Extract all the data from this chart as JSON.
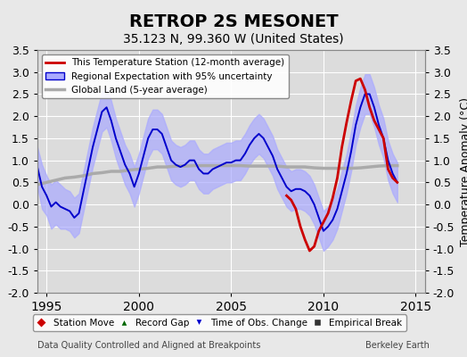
{
  "title": "RETROP 2S MESONET",
  "subtitle": "35.123 N, 99.360 W (United States)",
  "ylabel": "Temperature Anomaly (°C)",
  "footer_left": "Data Quality Controlled and Aligned at Breakpoints",
  "footer_right": "Berkeley Earth",
  "xlim": [
    1994.5,
    2015.5
  ],
  "ylim": [
    -2.0,
    3.5
  ],
  "yticks": [
    -2.0,
    -1.5,
    -1.0,
    -0.5,
    0.0,
    0.5,
    1.0,
    1.5,
    2.0,
    2.5,
    3.0,
    3.5
  ],
  "xticks": [
    1995,
    2000,
    2005,
    2010,
    2015
  ],
  "background_color": "#e8e8e8",
  "plot_bg_color": "#dcdcdc",
  "grid_color": "#ffffff",
  "blue_line_color": "#0000cc",
  "blue_fill_color": "#aaaaff",
  "red_line_color": "#cc0000",
  "gray_line_color": "#aaaaaa",
  "legend_items": [
    {
      "label": "This Temperature Station (12-month average)",
      "color": "#cc0000",
      "lw": 2.0,
      "linestyle": "-"
    },
    {
      "label": "Regional Expectation with 95% uncertainty",
      "color": "#0000cc",
      "lw": 1.5,
      "linestyle": "-"
    },
    {
      "label": "Global Land (5-year average)",
      "color": "#aaaaaa",
      "lw": 2.5,
      "linestyle": "-"
    }
  ],
  "bottom_legend": [
    {
      "label": "Station Move",
      "marker": "D",
      "color": "#cc0000"
    },
    {
      "label": "Record Gap",
      "marker": "^",
      "color": "#006600"
    },
    {
      "label": "Time of Obs. Change",
      "marker": "v",
      "color": "#0000cc"
    },
    {
      "label": "Empirical Break",
      "marker": "s",
      "color": "#333333"
    }
  ],
  "blue_x": [
    1994.5,
    1994.75,
    1995.0,
    1995.25,
    1995.5,
    1995.75,
    1996.0,
    1996.25,
    1996.5,
    1996.75,
    1997.0,
    1997.25,
    1997.5,
    1997.75,
    1998.0,
    1998.25,
    1998.5,
    1998.75,
    1999.0,
    1999.25,
    1999.5,
    1999.75,
    2000.0,
    2000.25,
    2000.5,
    2000.75,
    2001.0,
    2001.25,
    2001.5,
    2001.75,
    2002.0,
    2002.25,
    2002.5,
    2002.75,
    2003.0,
    2003.25,
    2003.5,
    2003.75,
    2004.0,
    2004.25,
    2004.5,
    2004.75,
    2005.0,
    2005.25,
    2005.5,
    2005.75,
    2006.0,
    2006.25,
    2006.5,
    2006.75,
    2007.0,
    2007.25,
    2007.5,
    2007.75,
    2008.0,
    2008.25,
    2008.5,
    2008.75,
    2009.0,
    2009.25,
    2009.5,
    2009.75,
    2010.0,
    2010.25,
    2010.5,
    2010.75,
    2011.0,
    2011.25,
    2011.5,
    2011.75,
    2012.0,
    2012.25,
    2012.5,
    2012.75,
    2013.0,
    2013.25,
    2013.5,
    2013.75,
    2014.0
  ],
  "blue_y": [
    0.85,
    0.4,
    0.2,
    -0.05,
    0.05,
    -0.05,
    -0.1,
    -0.15,
    -0.3,
    -0.2,
    0.3,
    0.8,
    1.3,
    1.7,
    2.1,
    2.2,
    1.9,
    1.5,
    1.2,
    0.9,
    0.7,
    0.4,
    0.7,
    1.1,
    1.5,
    1.7,
    1.7,
    1.6,
    1.3,
    1.0,
    0.9,
    0.85,
    0.9,
    1.0,
    1.0,
    0.8,
    0.7,
    0.7,
    0.8,
    0.85,
    0.9,
    0.95,
    0.95,
    1.0,
    1.0,
    1.15,
    1.35,
    1.5,
    1.6,
    1.5,
    1.3,
    1.1,
    0.8,
    0.6,
    0.4,
    0.3,
    0.35,
    0.35,
    0.3,
    0.2,
    0.0,
    -0.3,
    -0.6,
    -0.5,
    -0.35,
    -0.1,
    0.3,
    0.7,
    1.2,
    1.8,
    2.2,
    2.5,
    2.5,
    2.2,
    1.8,
    1.5,
    1.0,
    0.7,
    0.5
  ],
  "blue_upper": [
    1.3,
    0.9,
    0.65,
    0.45,
    0.55,
    0.45,
    0.35,
    0.3,
    0.15,
    0.25,
    0.75,
    1.25,
    1.75,
    2.15,
    2.55,
    2.65,
    2.35,
    1.95,
    1.65,
    1.35,
    1.15,
    0.85,
    1.15,
    1.55,
    1.95,
    2.15,
    2.15,
    2.05,
    1.75,
    1.45,
    1.35,
    1.3,
    1.35,
    1.45,
    1.45,
    1.25,
    1.15,
    1.15,
    1.25,
    1.3,
    1.35,
    1.4,
    1.4,
    1.45,
    1.45,
    1.6,
    1.8,
    1.95,
    2.05,
    1.95,
    1.75,
    1.55,
    1.25,
    1.05,
    0.85,
    0.75,
    0.8,
    0.8,
    0.75,
    0.65,
    0.45,
    0.15,
    -0.15,
    -0.05,
    0.1,
    0.35,
    0.75,
    1.15,
    1.65,
    2.25,
    2.65,
    2.95,
    2.95,
    2.65,
    2.25,
    1.95,
    1.45,
    1.15,
    0.95
  ],
  "blue_lower": [
    0.4,
    -0.1,
    -0.25,
    -0.55,
    -0.45,
    -0.55,
    -0.55,
    -0.6,
    -0.75,
    -0.65,
    -0.15,
    0.35,
    0.85,
    1.25,
    1.65,
    1.75,
    1.45,
    1.05,
    0.75,
    0.45,
    0.25,
    -0.05,
    0.25,
    0.65,
    1.05,
    1.25,
    1.25,
    1.15,
    0.85,
    0.55,
    0.45,
    0.4,
    0.45,
    0.55,
    0.55,
    0.35,
    0.25,
    0.25,
    0.35,
    0.4,
    0.45,
    0.5,
    0.5,
    0.55,
    0.55,
    0.7,
    0.9,
    1.05,
    1.15,
    1.05,
    0.85,
    0.65,
    0.35,
    0.15,
    -0.05,
    -0.15,
    -0.1,
    -0.1,
    -0.15,
    -0.25,
    -0.45,
    -0.75,
    -1.05,
    -0.95,
    -0.8,
    -0.55,
    -0.15,
    0.25,
    0.75,
    1.35,
    1.75,
    2.05,
    2.05,
    1.75,
    1.35,
    1.05,
    0.55,
    0.25,
    0.05
  ],
  "red_x": [
    2008.0,
    2008.25,
    2008.5,
    2008.75,
    2009.0,
    2009.25,
    2009.5,
    2009.75,
    2010.0,
    2010.25,
    2010.5,
    2010.75,
    2011.0,
    2011.25,
    2011.5,
    2011.75,
    2012.0,
    2012.25,
    2012.5,
    2012.75,
    2013.0,
    2013.25,
    2013.5,
    2013.75,
    2014.0
  ],
  "red_y": [
    0.2,
    0.1,
    -0.1,
    -0.5,
    -0.8,
    -1.05,
    -0.95,
    -0.6,
    -0.4,
    -0.2,
    0.15,
    0.6,
    1.3,
    1.85,
    2.35,
    2.8,
    2.85,
    2.6,
    2.2,
    1.9,
    1.7,
    1.5,
    0.8,
    0.6,
    0.5
  ],
  "gray_x": [
    1994.5,
    1995.0,
    1995.5,
    1996.0,
    1996.5,
    1997.0,
    1997.5,
    1998.0,
    1998.5,
    1999.0,
    1999.5,
    2000.0,
    2000.5,
    2001.0,
    2001.5,
    2002.0,
    2002.5,
    2003.0,
    2003.5,
    2004.0,
    2004.5,
    2005.0,
    2005.5,
    2006.0,
    2006.5,
    2007.0,
    2007.5,
    2008.0,
    2008.5,
    2009.0,
    2009.5,
    2010.0,
    2010.5,
    2011.0,
    2011.5,
    2012.0,
    2012.5,
    2013.0,
    2013.5,
    2014.0
  ],
  "gray_y": [
    0.45,
    0.5,
    0.55,
    0.6,
    0.62,
    0.65,
    0.7,
    0.72,
    0.75,
    0.75,
    0.78,
    0.8,
    0.82,
    0.85,
    0.85,
    0.87,
    0.87,
    0.88,
    0.88,
    0.88,
    0.88,
    0.88,
    0.88,
    0.87,
    0.87,
    0.87,
    0.87,
    0.85,
    0.85,
    0.85,
    0.83,
    0.82,
    0.82,
    0.82,
    0.82,
    0.83,
    0.85,
    0.87,
    0.88,
    0.88
  ]
}
